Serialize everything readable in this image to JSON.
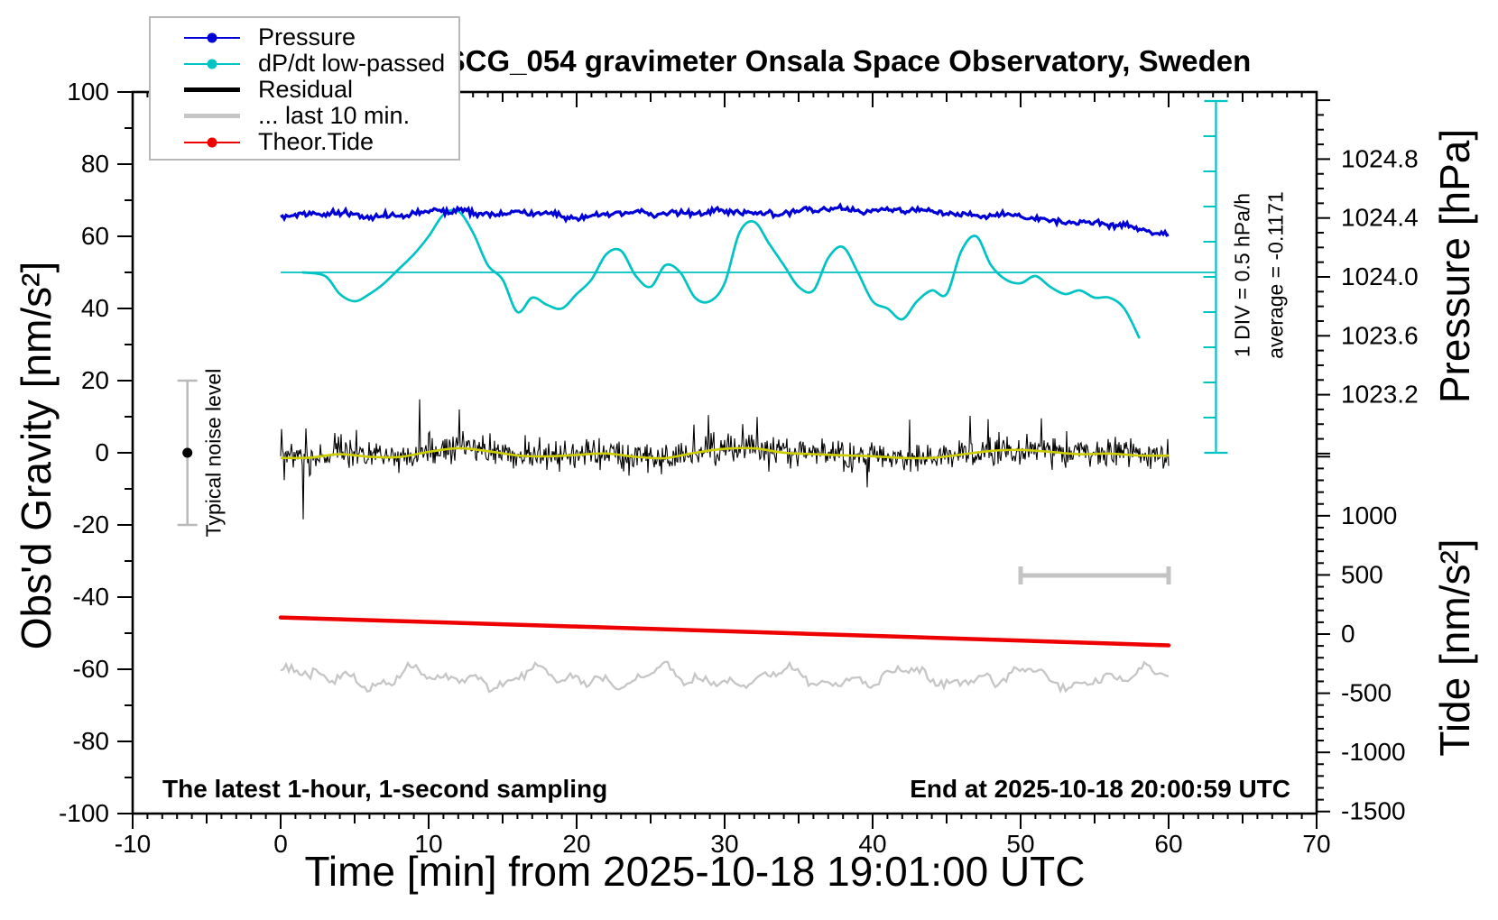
{
  "title": "SCG_054 gravimeter Onsala Space Observatory, Sweden",
  "legend": {
    "items": [
      {
        "label": "Pressure",
        "color": "#0000d6",
        "thick": 2,
        "dot": true
      },
      {
        "label": "dP/dt low-passed",
        "color": "#00c3c3",
        "thick": 2,
        "dot": true
      },
      {
        "label": "Residual",
        "color": "#000000",
        "thick": 5,
        "dot": false
      },
      {
        "label": "... last 10 min.",
        "color": "#c6c6c6",
        "thick": 5,
        "dot": false
      },
      {
        "label": "Theor.Tide",
        "color": "#ee0000",
        "thick": 2,
        "dot": true
      }
    ]
  },
  "axes": {
    "x": {
      "label": "Time [min] from 2025-10-18 19:01:00 UTC",
      "min": -10,
      "max": 70,
      "ticks": [
        "-10",
        "0",
        "10",
        "20",
        "30",
        "40",
        "50",
        "60",
        "70"
      ]
    },
    "gravity": {
      "label": "Obs'd Gravity [nm/s²]",
      "min": -100,
      "max": 100,
      "ticks": [
        "100",
        "80",
        "60",
        "40",
        "20",
        "0",
        "-20",
        "-40",
        "-60",
        "-80",
        "-100"
      ]
    },
    "pressure": {
      "label": "Pressure [hPa]",
      "ticks": [
        "1024.8",
        "1024.4",
        "1024.0",
        "1023.6",
        "1023.2"
      ]
    },
    "tide": {
      "label": "Tide [nm/s²]",
      "ticks": [
        "1000",
        "500",
        "0",
        "-500",
        "-1000",
        "-1500"
      ]
    }
  },
  "annotations": {
    "div_note": "1 DIV = 0.5 hPa/h",
    "avg_note": "average = -0.1171",
    "noise_note": "Typical noise level",
    "note_left": "The latest 1-hour, 1-second sampling",
    "note_right": "End at 2025-10-18 20:00:59 UTC"
  },
  "chart_data": {
    "type": "line",
    "title": "SCG_054 gravimeter Onsala Space Observatory, Sweden",
    "xlabel": "Time [min] from 2025-10-18 19:01:00 UTC",
    "x_range_min": [
      -10,
      70
    ],
    "grid": false,
    "legend_position": "top-left",
    "axes_ranges": {
      "gravity_nms2": [
        -100,
        100
      ],
      "pressure_hpa_ticks": [
        1024.8,
        1024.4,
        1024.0,
        1023.6,
        1023.2
      ],
      "tide_nms2": [
        -1500,
        1500
      ]
    },
    "series": [
      {
        "name": "Pressure",
        "unit": "hPa",
        "axis": "pressure",
        "color": "#0000d6",
        "x": [
          0,
          2,
          4,
          6,
          8,
          10,
          12,
          14,
          16,
          18,
          20,
          22,
          24,
          26,
          28,
          30,
          32,
          34,
          36,
          38,
          40,
          42,
          44,
          46,
          48,
          50,
          52,
          54,
          56,
          58,
          60
        ],
        "y": [
          1024.42,
          1024.43,
          1024.42,
          1024.41,
          1024.43,
          1024.43,
          1024.45,
          1024.44,
          1024.43,
          1024.42,
          1024.41,
          1024.42,
          1024.43,
          1024.44,
          1024.44,
          1024.44,
          1024.43,
          1024.44,
          1024.45,
          1024.46,
          1024.46,
          1024.45,
          1024.44,
          1024.43,
          1024.42,
          1024.4,
          1024.39,
          1024.37,
          1024.35,
          1024.33,
          1024.3
        ],
        "noise_hpa": 0.01
      },
      {
        "name": "dP/dt low-passed",
        "unit": "hPa/h (relative to average line)",
        "axis": "dpdt",
        "color": "#00c3c3",
        "div_value_hpa_per_h": 0.5,
        "average_hpa_per_h": -0.1171,
        "x": [
          1.5,
          3,
          4,
          5,
          6,
          7,
          8,
          9,
          10,
          11,
          12,
          13,
          14,
          15,
          16,
          17,
          18,
          19,
          20,
          21,
          22,
          23,
          24,
          25,
          26,
          27,
          28,
          29,
          30,
          31,
          32,
          33,
          34,
          35,
          36,
          37,
          38,
          39,
          40,
          41,
          42,
          43,
          44,
          45,
          46,
          47,
          48,
          49,
          50,
          51,
          52,
          53,
          54,
          55,
          56,
          57,
          58
        ],
        "y": [
          0.0,
          -0.05,
          -0.3,
          -0.4,
          -0.3,
          -0.15,
          0.05,
          0.25,
          0.5,
          0.8,
          0.85,
          0.55,
          0.1,
          -0.1,
          -0.55,
          -0.35,
          -0.45,
          -0.5,
          -0.3,
          -0.1,
          0.25,
          0.3,
          -0.05,
          -0.2,
          0.1,
          0.0,
          -0.35,
          -0.4,
          -0.15,
          0.55,
          0.7,
          0.4,
          0.1,
          -0.2,
          -0.25,
          0.2,
          0.35,
          0.0,
          -0.4,
          -0.5,
          -0.65,
          -0.4,
          -0.25,
          -0.3,
          0.3,
          0.5,
          0.1,
          -0.1,
          -0.15,
          -0.05,
          -0.2,
          -0.3,
          -0.25,
          -0.35,
          -0.35,
          -0.5,
          -0.9
        ]
      },
      {
        "name": "Residual",
        "unit": "nm/s2",
        "axis": "gravity",
        "color": "#000000",
        "x_span": [
          0,
          60
        ],
        "mean": 0,
        "noise_std": 3,
        "spike_amplitude": 15,
        "sampling": "1-second"
      },
      {
        "name": "Residual low-passed (yellow overlay)",
        "unit": "nm/s2",
        "axis": "gravity",
        "color": "#cdcd00",
        "x_span": [
          0,
          60
        ],
        "mean": -0.5,
        "wiggle_amplitude": 1.5
      },
      {
        "name": "... last 10 min.",
        "unit": "nm/s2",
        "axis": "gravity-display",
        "color": "#c6c6c6",
        "x_span": [
          0,
          60
        ],
        "display_center_gravity": -62.5,
        "wiggle_amplitude": 4,
        "real_time_window_min": [
          50,
          60
        ]
      },
      {
        "name": "Theor.Tide",
        "unit": "nm/s2",
        "axis": "tide",
        "color": "#ee0000",
        "x": [
          0,
          30,
          60
        ],
        "y": [
          140,
          25,
          -95
        ]
      }
    ],
    "markers": {
      "noise_errorbar": {
        "t_min": -6.3,
        "gravity_center": 0,
        "gravity_error": 20
      },
      "last10_scalebar": {
        "t_start": 50,
        "t_end": 60,
        "gravity": -34
      },
      "dpdt_axis": {
        "t": 63.2,
        "gravity_top": 97.5,
        "gravity_bottom": 0,
        "divisions": 10,
        "reference_gravity": 50
      }
    }
  }
}
